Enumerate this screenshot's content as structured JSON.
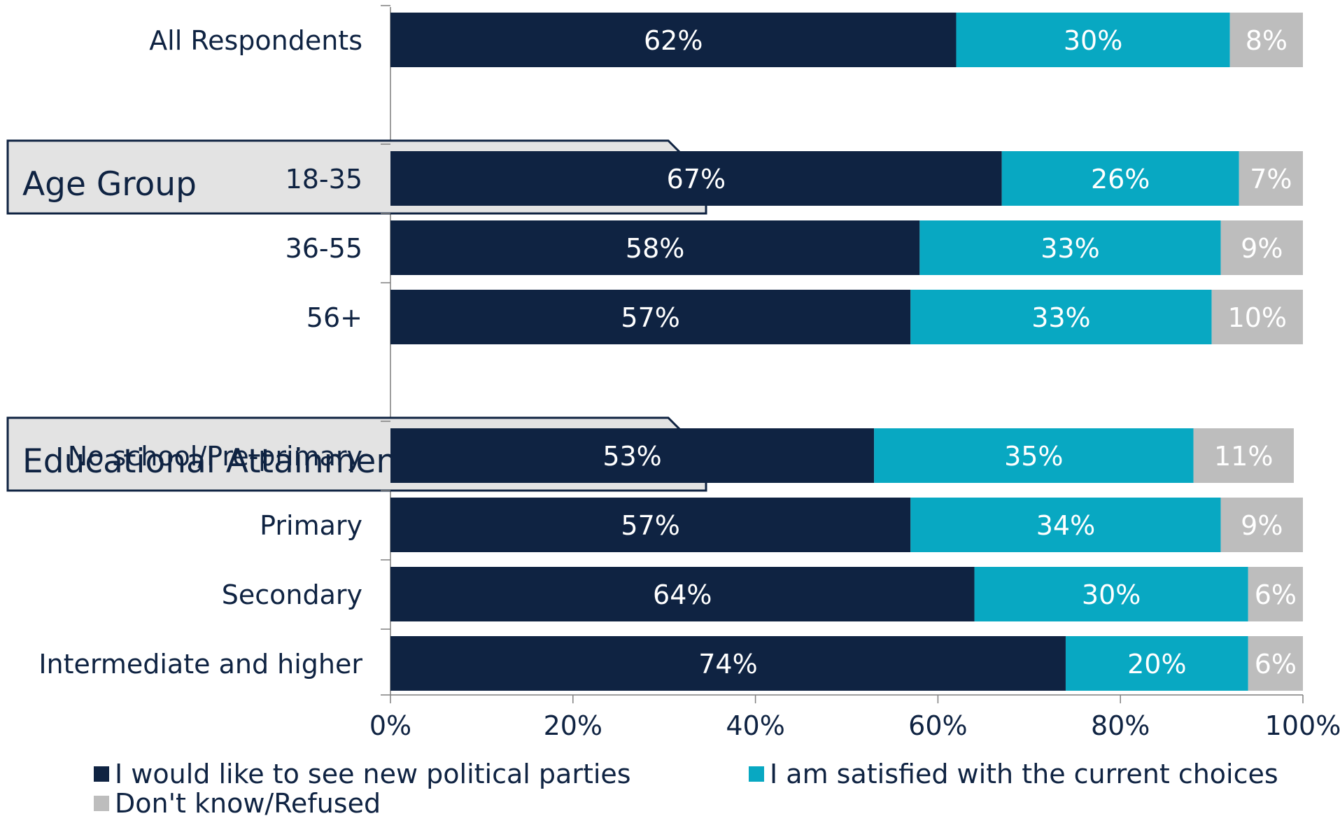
{
  "chart_data": {
    "type": "bar",
    "orientation": "horizontal",
    "stacked": true,
    "title": "",
    "xlabel": "",
    "ylabel": "",
    "xlim": [
      0,
      100
    ],
    "x_ticks": [
      "0%",
      "20%",
      "40%",
      "60%",
      "80%",
      "100%"
    ],
    "grid": false,
    "legend_position": "bottom",
    "colors": {
      "new_parties": "#0f2342",
      "satisfied": "#08a8c2",
      "dont_know": "#bdbdbd",
      "group_box_fill": "#e3e3e3",
      "group_box_border": "#0f2342"
    },
    "rows": [
      {
        "kind": "category",
        "label": "All Respondents",
        "values": [
          62,
          30,
          8
        ]
      },
      {
        "kind": "group",
        "label": "Age Group"
      },
      {
        "kind": "category",
        "label": "18-35",
        "values": [
          67,
          26,
          7
        ]
      },
      {
        "kind": "category",
        "label": "36-55",
        "values": [
          58,
          33,
          9
        ]
      },
      {
        "kind": "category",
        "label": "56+",
        "values": [
          57,
          33,
          10
        ]
      },
      {
        "kind": "group",
        "label": "Educational Attainment"
      },
      {
        "kind": "category",
        "label": "No school/Pre-primary",
        "values": [
          53,
          35,
          11
        ]
      },
      {
        "kind": "category",
        "label": "Primary",
        "values": [
          57,
          34,
          9
        ]
      },
      {
        "kind": "category",
        "label": "Secondary",
        "values": [
          64,
          30,
          6
        ]
      },
      {
        "kind": "category",
        "label": "Intermediate and higher",
        "values": [
          74,
          20,
          6
        ]
      }
    ],
    "series": [
      {
        "name": "I would like to see new political parties",
        "color_key": "new_parties"
      },
      {
        "name": "I am satisfied with the current choices",
        "color_key": "satisfied"
      },
      {
        "name": "Don't know/Refused",
        "color_key": "dont_know"
      }
    ]
  }
}
